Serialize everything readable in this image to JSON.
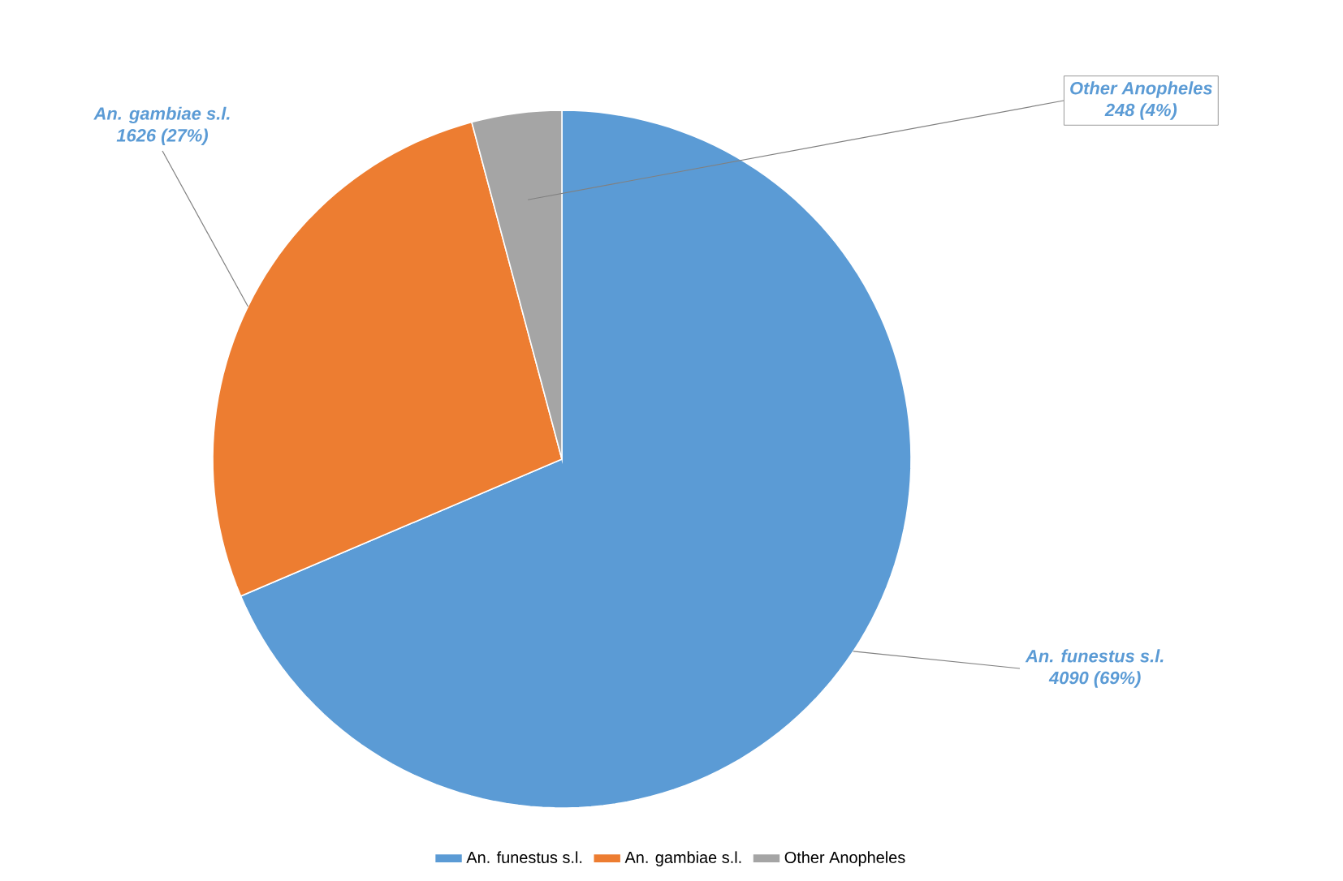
{
  "chart_data": {
    "type": "pie",
    "categories": [
      "An. funestus s.l.",
      "An. gambiae s.l.",
      "Other Anopheles"
    ],
    "values": [
      4090,
      1626,
      248
    ],
    "value_labels": [
      "4090 (69%)",
      "1626 (27%)",
      "248 (4%)"
    ],
    "colors": [
      "#5b9bd5",
      "#ed7d31",
      "#a5a5a5"
    ],
    "legend": "bottom"
  }
}
